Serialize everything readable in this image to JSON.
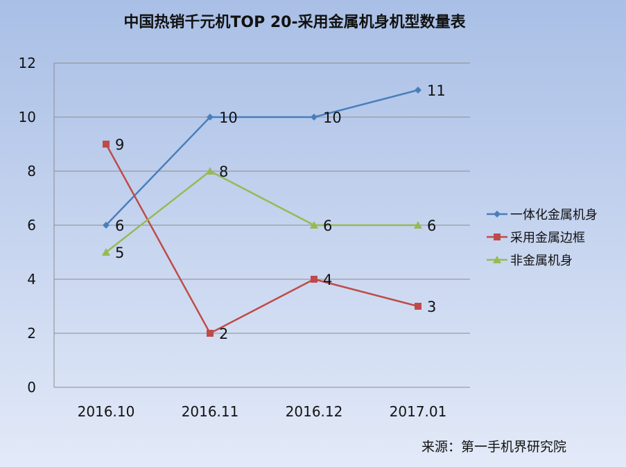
{
  "chart_data": {
    "type": "line",
    "title": "中国热销千元机TOP 20-采用金属机身机型数量表",
    "categories": [
      "2016.10",
      "2016.11",
      "2016.12",
      "2017.01"
    ],
    "ylim": [
      0,
      12
    ],
    "yticks": [
      0,
      2,
      4,
      6,
      8,
      10,
      12
    ],
    "grid": true,
    "legend_position": "right",
    "series": [
      {
        "name": "一体化金属机身",
        "values": [
          6,
          10,
          10,
          11
        ],
        "color": "#4a7ebb",
        "marker": "diamond"
      },
      {
        "name": "采用金属边框",
        "values": [
          9,
          2,
          4,
          3
        ],
        "color": "#be4b48",
        "marker": "square"
      },
      {
        "name": "非金属机身",
        "values": [
          5,
          8,
          6,
          6
        ],
        "color": "#98b954",
        "marker": "triangle"
      }
    ]
  },
  "source_note": "来源：第一手机界研究院"
}
